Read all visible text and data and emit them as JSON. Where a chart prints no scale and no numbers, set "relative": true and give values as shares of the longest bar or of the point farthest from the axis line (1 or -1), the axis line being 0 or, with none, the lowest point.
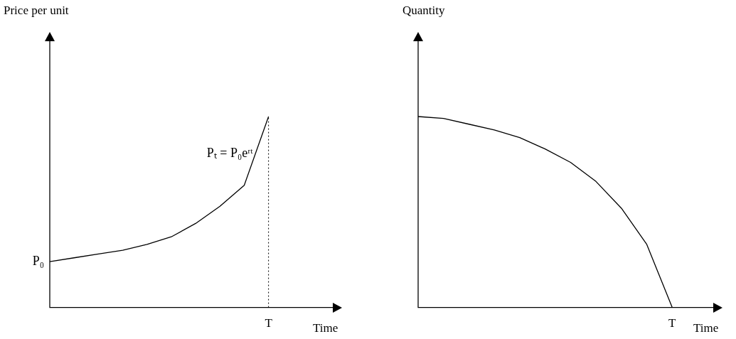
{
  "chart_data": [
    {
      "type": "line",
      "relative": true,
      "ylabel": "Price per unit",
      "xlabel": "Time",
      "legend": false,
      "marker": "none",
      "line_style": "solid",
      "categories": [
        null,
        null,
        null,
        null,
        null,
        null,
        null,
        null,
        null,
        null,
        null,
        null
      ],
      "series": [
        {
          "color": "#000000",
          "values": [
            0.24,
            0.26,
            0.28,
            0.3,
            0.33,
            0.37,
            0.44,
            0.53,
            0.64,
            1,
            null,
            null
          ]
        }
      ],
      "ref_lines": [
        {
          "axis": "x",
          "label": "T",
          "line_style": "dotted"
        }
      ],
      "annotations": [
        "Pₜ = P₀eʳᵗ",
        "P₀"
      ]
    },
    {
      "type": "line",
      "relative": true,
      "ylabel": "Quantity",
      "xlabel": "Time",
      "legend": false,
      "marker": "none",
      "line_style": "solid",
      "categories": [
        null,
        null,
        null,
        null,
        null,
        null,
        null,
        null,
        null,
        null,
        null,
        null
      ],
      "series": [
        {
          "color": "#000000",
          "values": [
            1,
            0.99,
            0.96,
            0.93,
            0.89,
            0.83,
            0.76,
            0.66,
            0.52,
            0.33,
            0,
            null
          ]
        }
      ],
      "annotations": [
        "T"
      ]
    }
  ]
}
